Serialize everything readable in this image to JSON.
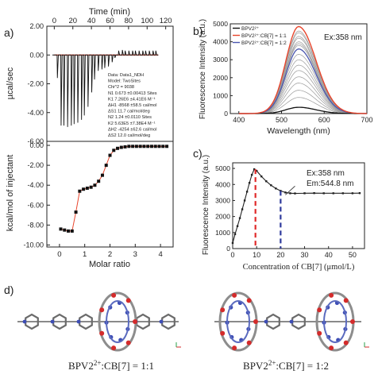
{
  "panel_labels": {
    "a": "a)",
    "b": "b)",
    "c": "c)",
    "d": "d)"
  },
  "chart_data": [
    {
      "id": "itc_raw",
      "type": "line",
      "xlabel": "Time (min)",
      "ylabel": "µcal/sec",
      "xlim": [
        0,
        120
      ],
      "ylim": [
        -6.0,
        2.0
      ],
      "xticks": [
        "0",
        "20",
        "40",
        "60",
        "80",
        "100",
        "120"
      ],
      "yticks": [
        "-6.00",
        "-4.00",
        "-2.00",
        "0.00",
        "2.00"
      ],
      "injections": [
        {
          "t": 3,
          "peak": -1.6
        },
        {
          "t": 7,
          "peak": -4.9
        },
        {
          "t": 10,
          "peak": -4.9
        },
        {
          "t": 14,
          "peak": -5.0
        },
        {
          "t": 18,
          "peak": -4.9
        },
        {
          "t": 21,
          "peak": -4.8
        },
        {
          "t": 25,
          "peak": -4.7
        },
        {
          "t": 29,
          "peak": -4.5
        },
        {
          "t": 32,
          "peak": -4.2
        },
        {
          "t": 36,
          "peak": -3.6
        },
        {
          "t": 40,
          "peak": -2.6
        },
        {
          "t": 43,
          "peak": -1.7
        },
        {
          "t": 47,
          "peak": -1.1
        },
        {
          "t": 51,
          "peak": -1.0
        },
        {
          "t": 54,
          "peak": -0.9
        },
        {
          "t": 58,
          "peak": -0.8
        },
        {
          "t": 62,
          "peak": -0.5
        },
        {
          "t": 65,
          "peak": -0.2
        },
        {
          "t": 69,
          "peak": 0.3
        },
        {
          "t": 73,
          "peak": 0.35
        },
        {
          "t": 76,
          "peak": 0.3
        },
        {
          "t": 80,
          "peak": 0.3
        },
        {
          "t": 84,
          "peak": 0.3
        },
        {
          "t": 87,
          "peak": 0.3
        },
        {
          "t": 91,
          "peak": 0.3
        },
        {
          "t": 95,
          "peak": 0.3
        },
        {
          "t": 98,
          "peak": 0.3
        },
        {
          "t": 102,
          "peak": 0.3
        },
        {
          "t": 106,
          "peak": 0.3
        },
        {
          "t": 109,
          "peak": 0.3
        }
      ],
      "baseline": 0.0,
      "colors": {
        "trace": "#111111",
        "baseline": "#e8452c"
      }
    },
    {
      "id": "itc_integrated",
      "type": "scatter",
      "xlabel": "Molar ratio",
      "ylabel": "kcal/mol of injectant",
      "xlim": [
        -0.5,
        4.5
      ],
      "ylim": [
        -10.0,
        0.0
      ],
      "xticks": [
        "0",
        "1",
        "2",
        "3",
        "4"
      ],
      "yticks": [
        "-10.00",
        "-8.00",
        "-6.00",
        "-4.00",
        "-2.00",
        "0.00"
      ],
      "x": [
        0.05,
        0.2,
        0.35,
        0.5,
        0.65,
        0.8,
        0.95,
        1.1,
        1.25,
        1.4,
        1.55,
        1.7,
        1.85,
        2.0,
        2.15,
        2.3,
        2.45,
        2.6,
        2.75,
        2.9,
        3.05,
        3.2,
        3.35,
        3.5,
        3.65,
        3.8,
        3.95,
        4.1,
        4.25
      ],
      "y": [
        -8.4,
        -8.5,
        -8.6,
        -8.6,
        -6.7,
        -4.6,
        -4.4,
        -4.3,
        -4.2,
        -4.0,
        -3.6,
        -3.0,
        -2.0,
        -1.0,
        -0.5,
        -0.3,
        -0.2,
        -0.15,
        -0.1,
        -0.1,
        -0.1,
        -0.1,
        -0.1,
        -0.1,
        -0.1,
        -0.1,
        -0.1,
        -0.1,
        -0.1
      ],
      "colors": {
        "points": "#111111",
        "fit": "#e8452c"
      },
      "fit_box": [
        "Data: Data1_NDH",
        "Model: TwoSites",
        "Chi^2 = 9038",
        "N1      0.673    ±0.00413 Sites",
        "K1      7.26E6   ±4.41E6 M⁻¹",
        "ΔH1     -8568    ±58.5 cal/mol",
        "ΔS1     11.7 cal/mol/deg",
        "N2      1.24     ±0.0110 Sites",
        "K2      5.63E5   ±7.38E4 M⁻¹",
        "ΔH2     -4254    ±62.6 cal/mol",
        "ΔS2     12.0 cal/mol/deg"
      ]
    },
    {
      "id": "fluorescence_spectra",
      "type": "line",
      "xlabel": "Wavelength (nm)",
      "ylabel": "Fluorescence Intensity (a.u.)",
      "xlim": [
        380,
        700
      ],
      "ylim": [
        0,
        5000
      ],
      "xticks": [
        "400",
        "500",
        "600",
        "700"
      ],
      "yticks": [
        "0",
        "1000",
        "2000",
        "3000",
        "4000",
        "5000"
      ],
      "annotation": "Ex:358 nm",
      "legend": [
        "BPV2²⁺",
        "BPV2²⁺:CB[7] = 1:1",
        "BPV2²⁺:CB[7] = 1:2"
      ],
      "legend_colors": [
        "#111111",
        "#e8452c",
        "#4a56b0"
      ],
      "peak_nm": 540,
      "curve_peaks": [
        350,
        900,
        1300,
        1700,
        2050,
        2400,
        2700,
        3000,
        3300,
        3600,
        3900,
        4200,
        4500,
        4850,
        4600,
        4300,
        4000,
        3800,
        3600
      ],
      "highlight": {
        "black": 350,
        "red": 4850,
        "blue": 3600
      }
    },
    {
      "id": "titration_curve",
      "type": "line",
      "xlabel": "Concentration of CB[7] (μmol/L)",
      "ylabel": "Fluorescence Intensity (a.u.)",
      "xlim": [
        0,
        55
      ],
      "ylim": [
        0,
        5000
      ],
      "xticks": [
        "0",
        "10",
        "20",
        "30",
        "40",
        "50"
      ],
      "yticks": [
        "0",
        "1000",
        "2000",
        "3000",
        "4000",
        "5000"
      ],
      "x": [
        0,
        1,
        2,
        3,
        4,
        5,
        6,
        7,
        8,
        9,
        10,
        12,
        14,
        16,
        18,
        20,
        22,
        24,
        26,
        30,
        34,
        38,
        42,
        46,
        50,
        53
      ],
      "y": [
        350,
        900,
        1400,
        1900,
        2450,
        3000,
        3550,
        4100,
        4600,
        4950,
        4850,
        4500,
        4200,
        3950,
        3750,
        3600,
        3500,
        3450,
        3440,
        3450,
        3460,
        3450,
        3450,
        3450,
        3450,
        3460
      ],
      "annotations": [
        "Ex:358 nm",
        "Em:544.8 nm"
      ],
      "markers": [
        {
          "x": 9.5,
          "color": "#e02a2a"
        },
        {
          "x": 20,
          "color": "#2e3a9c"
        }
      ]
    }
  ],
  "molecules": {
    "caption_left_prefix": "BPV2",
    "caption_left_sup": "2+",
    "caption_left_suffix": ":CB[7] = 1:1",
    "caption_right_prefix": "BPV2",
    "caption_right_sup": "2+",
    "caption_right_suffix": ":CB[7] = 1:2"
  }
}
